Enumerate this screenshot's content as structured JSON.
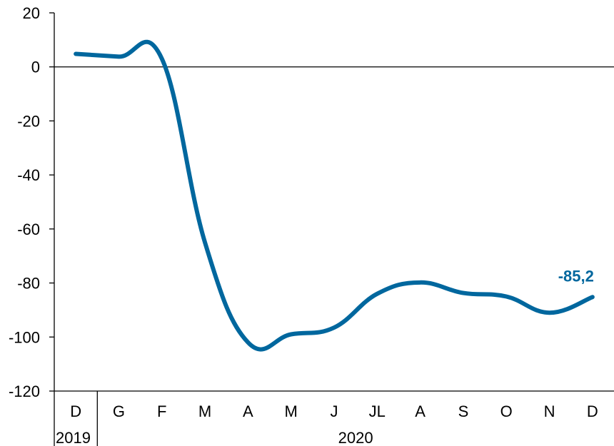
{
  "chart_data": {
    "type": "line",
    "title": "",
    "xlabel": "",
    "ylabel": "",
    "ylim": [
      -120,
      20
    ],
    "y_ticks": [
      20,
      0,
      -20,
      -40,
      -60,
      -80,
      -100,
      -120
    ],
    "y_tick_labels": [
      "20",
      "0",
      "-20",
      "-40",
      "-60",
      "-80",
      "-100",
      "-120"
    ],
    "categories": [
      "D",
      "G",
      "F",
      "M",
      "A",
      "M",
      "J",
      "JL",
      "A",
      "S",
      "O",
      "N",
      "D"
    ],
    "year_groups": [
      {
        "label": "2019",
        "start": 0,
        "end": 0
      },
      {
        "label": "2020",
        "start": 1,
        "end": 12
      }
    ],
    "grid": false,
    "reference_line": 0,
    "series": [
      {
        "values": [
          4.8,
          3.8,
          3.0,
          -65.0,
          -102.0,
          -99.0,
          -96.5,
          -84.0,
          -79.8,
          -83.7,
          -85.0,
          -91.0,
          -85.2
        ],
        "color": "#00679E"
      }
    ],
    "end_label": "-85,2"
  }
}
